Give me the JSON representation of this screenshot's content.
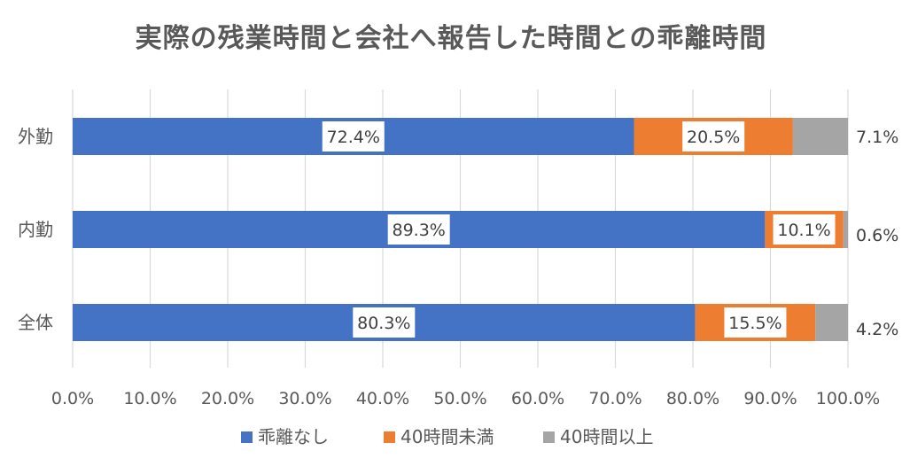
{
  "chart_data": {
    "type": "bar",
    "orientation": "horizontal",
    "stacked": "100%",
    "title": "実際の残業時間と会社へ報告した時間との乖離時間",
    "categories": [
      "外勤",
      "内勤",
      "全体"
    ],
    "series": [
      {
        "name": "乖離なし",
        "values": [
          72.4,
          89.3,
          80.3
        ],
        "labels": [
          "72.4%",
          "89.3%",
          "80.3%"
        ],
        "color": "#4472C4"
      },
      {
        "name": "40時間未満",
        "values": [
          20.5,
          10.1,
          15.5
        ],
        "labels": [
          "20.5%",
          "10.1%",
          "15.5%"
        ],
        "color": "#ED7D31"
      },
      {
        "name": "40時間以上",
        "values": [
          7.1,
          0.6,
          4.2
        ],
        "labels": [
          "7.1%",
          "0.6%",
          "4.2%"
        ],
        "color": "#A5A5A5"
      }
    ],
    "xlim": [
      0,
      100
    ],
    "xticks": [
      "0.0%",
      "10.0%",
      "20.0%",
      "30.0%",
      "40.0%",
      "50.0%",
      "60.0%",
      "70.0%",
      "80.0%",
      "90.0%",
      "100.0%"
    ],
    "grid": true,
    "legend": "bottom"
  }
}
